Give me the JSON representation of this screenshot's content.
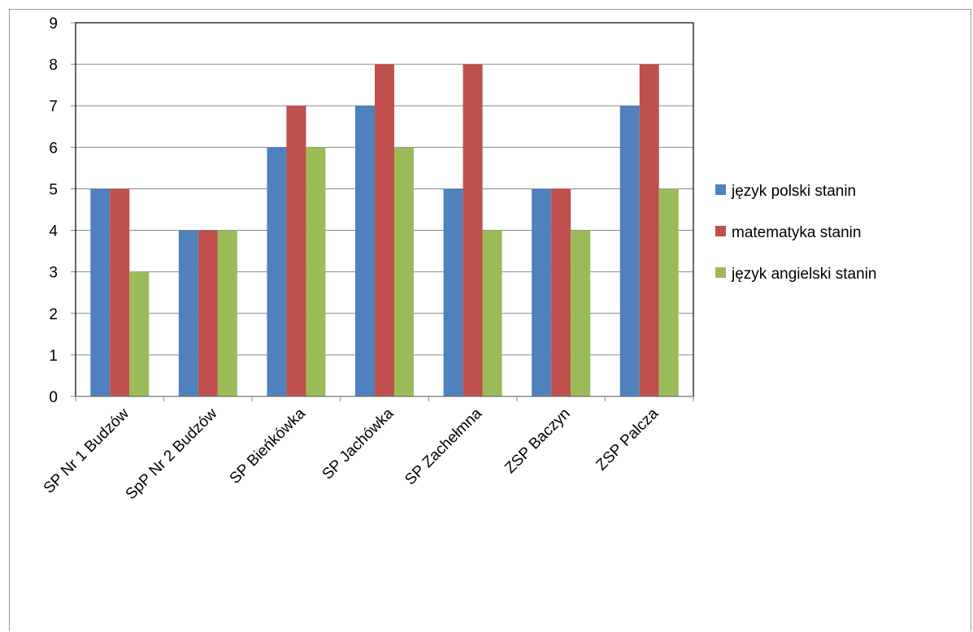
{
  "chart_data": {
    "type": "bar",
    "title": "",
    "xlabel": "",
    "ylabel": "",
    "ylim": [
      0,
      9
    ],
    "yticks": [
      0,
      1,
      2,
      3,
      4,
      5,
      6,
      7,
      8,
      9
    ],
    "grid": true,
    "legend_position": "right",
    "categories": [
      "SP Nr 1 Budzów",
      "SpP Nr 2 Budzów",
      "SP Bieńkówka",
      "SP Jachówka",
      "SP Zachełmna",
      "ZSP Baczyn",
      "ZSP Palcza"
    ],
    "series": [
      {
        "name": "język polski stanin",
        "color": "#4f81bd",
        "values": [
          5,
          4,
          6,
          7,
          5,
          5,
          7
        ]
      },
      {
        "name": "matematyka stanin",
        "color": "#c0504d",
        "values": [
          5,
          4,
          7,
          8,
          8,
          5,
          8
        ]
      },
      {
        "name": "język angielski stanin",
        "color": "#9bbb59",
        "values": [
          3,
          4,
          6,
          6,
          4,
          4,
          5
        ]
      }
    ]
  }
}
